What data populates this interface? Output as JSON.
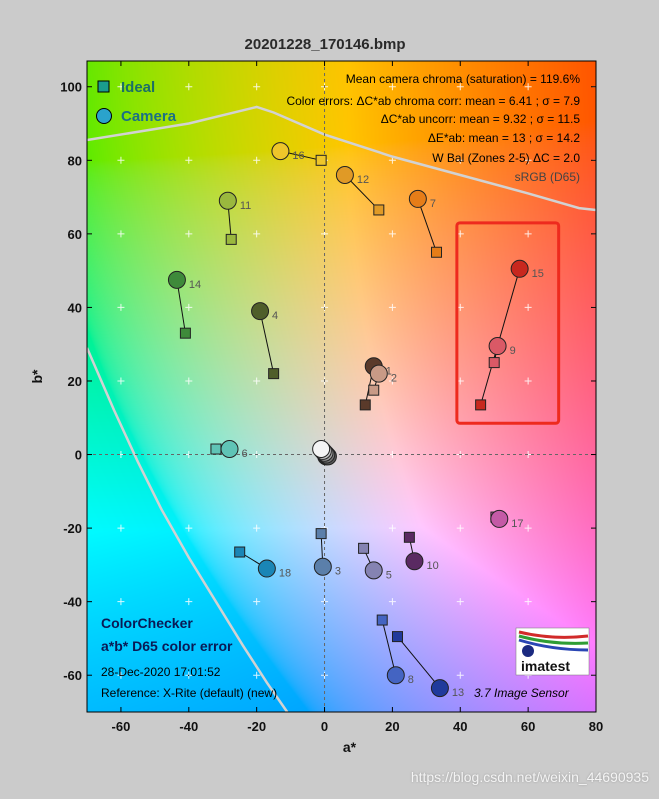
{
  "title": "20201228_170146.bmp",
  "chart_data": {
    "type": "scatter",
    "xlabel": "a*",
    "ylabel": "b*",
    "xlim": [
      -70,
      80
    ],
    "ylim": [
      -70,
      107
    ],
    "xticks": [
      -60,
      -40,
      -20,
      0,
      20,
      40,
      60,
      80
    ],
    "yticks": [
      -60,
      -40,
      -20,
      0,
      20,
      40,
      60,
      80,
      100
    ],
    "grid": true,
    "legend": {
      "position": "top-left",
      "entries": [
        "Ideal",
        "Camera"
      ]
    },
    "series": [
      {
        "name": "Ideal",
        "marker": "square",
        "points": [
          {
            "id": "1",
            "x": 12,
            "y": 13.5
          },
          {
            "id": "2",
            "x": 14.5,
            "y": 17.5
          },
          {
            "id": "3",
            "x": -1,
            "y": -21.5
          },
          {
            "id": "4",
            "x": -15,
            "y": 22
          },
          {
            "id": "5",
            "x": 11.5,
            "y": -25.5
          },
          {
            "id": "6",
            "x": -32,
            "y": 1.5
          },
          {
            "id": "7",
            "x": 33,
            "y": 55
          },
          {
            "id": "8",
            "x": 17,
            "y": -45
          },
          {
            "id": "9",
            "x": 50,
            "y": 25
          },
          {
            "id": "10",
            "x": 25,
            "y": -22.5
          },
          {
            "id": "11",
            "x": -27.5,
            "y": 58.5
          },
          {
            "id": "12",
            "x": 16,
            "y": 66.5
          },
          {
            "id": "13",
            "x": 21.5,
            "y": -49.5
          },
          {
            "id": "14",
            "x": -41,
            "y": 33
          },
          {
            "id": "15",
            "x": 46,
            "y": 13.5
          },
          {
            "id": "16",
            "x": -1,
            "y": 80
          },
          {
            "id": "17",
            "x": 50.5,
            "y": -17
          },
          {
            "id": "18",
            "x": -25,
            "y": -26.5
          },
          {
            "id": "19",
            "x": -0.5,
            "y": 1
          },
          {
            "id": "20",
            "x": -0.5,
            "y": 0.5
          },
          {
            "id": "21",
            "x": -0.3,
            "y": 0.3
          },
          {
            "id": "22",
            "x": 0,
            "y": 0
          },
          {
            "id": "23",
            "x": 0.3,
            "y": -0.3
          },
          {
            "id": "24",
            "x": 0.5,
            "y": -0.5
          }
        ]
      },
      {
        "name": "Camera",
        "marker": "circle",
        "points": [
          {
            "id": "1",
            "x": 14.5,
            "y": 24
          },
          {
            "id": "2",
            "x": 16,
            "y": 22
          },
          {
            "id": "3",
            "x": -0.5,
            "y": -30.5
          },
          {
            "id": "4",
            "x": -19,
            "y": 39
          },
          {
            "id": "5",
            "x": 14.5,
            "y": -31.5
          },
          {
            "id": "6",
            "x": -28,
            "y": 1.5
          },
          {
            "id": "7",
            "x": 27.5,
            "y": 69.5
          },
          {
            "id": "8",
            "x": 21,
            "y": -60
          },
          {
            "id": "9",
            "x": 51,
            "y": 29.5
          },
          {
            "id": "10",
            "x": 26.5,
            "y": -29
          },
          {
            "id": "11",
            "x": -28.5,
            "y": 69
          },
          {
            "id": "12",
            "x": 6,
            "y": 76
          },
          {
            "id": "13",
            "x": 34,
            "y": -63.5
          },
          {
            "id": "14",
            "x": -43.5,
            "y": 47.5
          },
          {
            "id": "15",
            "x": 57.5,
            "y": 50.5
          },
          {
            "id": "16",
            "x": -13,
            "y": 82.5
          },
          {
            "id": "17",
            "x": 51.5,
            "y": -17.5
          },
          {
            "id": "18",
            "x": -17,
            "y": -31
          },
          {
            "id": "19",
            "x": -1,
            "y": 1.5
          },
          {
            "id": "20",
            "x": -0.5,
            "y": 1
          },
          {
            "id": "21",
            "x": 0,
            "y": 0.5
          },
          {
            "id": "22",
            "x": 0.5,
            "y": 0
          },
          {
            "id": "23",
            "x": 1,
            "y": -0.5
          },
          {
            "id": "24",
            "x": 0.5,
            "y": -0.5
          }
        ]
      }
    ],
    "boundary_srgb": [
      [
        [
          -70,
          85.5
        ],
        [
          -40,
          90
        ],
        [
          -20,
          94.5
        ],
        [
          -15,
          93
        ],
        [
          0,
          87
        ],
        [
          20,
          81
        ],
        [
          40,
          76
        ],
        [
          60,
          71
        ],
        [
          75,
          67
        ],
        [
          80,
          66.5
        ]
      ],
      [
        [
          -70,
          29
        ],
        [
          -62,
          12
        ],
        [
          -55,
          -2
        ],
        [
          -48,
          -15
        ],
        [
          -40,
          -28
        ],
        [
          -32,
          -40
        ],
        [
          -24,
          -52
        ],
        [
          -17,
          -62
        ],
        [
          -11,
          -70
        ]
      ]
    ],
    "annotations": {
      "stats": [
        "Mean camera chroma (saturation) = 119.6%",
        "Color errors: ΔC*ab chroma corr:  mean = 6.41 ;  σ = 7.9",
        "ΔC*ab uncorr:  mean = 9.32 ;  σ = 11.5",
        "ΔE*ab:  mean = 13 ;  σ = 14.2",
        "W Bal (Zones 2-5) ΔC = 2.0",
        "sRGB (D65)"
      ],
      "footer": [
        "ColorChecker",
        "a*b* D65 color error",
        "28-Dec-2020 17:01:52",
        "Reference: X-Rite (default) (new)"
      ],
      "version": "3.7  Image Sensor",
      "logo": "imatest",
      "highlight": {
        "x": [
          39,
          69
        ],
        "y": [
          8.5,
          63
        ]
      }
    }
  },
  "colors": {
    "highlight": "#ee2a1e",
    "boundary": "#d2d2d2",
    "annotation_text": "#000000",
    "footer_text": "#0a1a55",
    "legend_ideal": "#1a9c8e",
    "legend_camera": "#2aa3cc",
    "patches": {
      "1": "#5a3a2a",
      "2": "#c89a86",
      "3": "#5b7faa",
      "4": "#4f5e2a",
      "5": "#8583b2",
      "6": "#5fc4b6",
      "7": "#e67d18",
      "8": "#4464c2",
      "9": "#da5966",
      "10": "#5a2a62",
      "11": "#9ab83e",
      "12": "#e09a26",
      "13": "#203a9c",
      "14": "#3e8a3a",
      "15": "#c8281e",
      "16": "#eec62a",
      "17": "#c45aa6",
      "18": "#1a86b6",
      "19": "#f4f4f4",
      "20": "#c8c8c8",
      "21": "#a0a0a0",
      "22": "#787878",
      "23": "#555555",
      "24": "#333333"
    }
  },
  "watermark": "https://blog.csdn.net/weixin_44690935"
}
